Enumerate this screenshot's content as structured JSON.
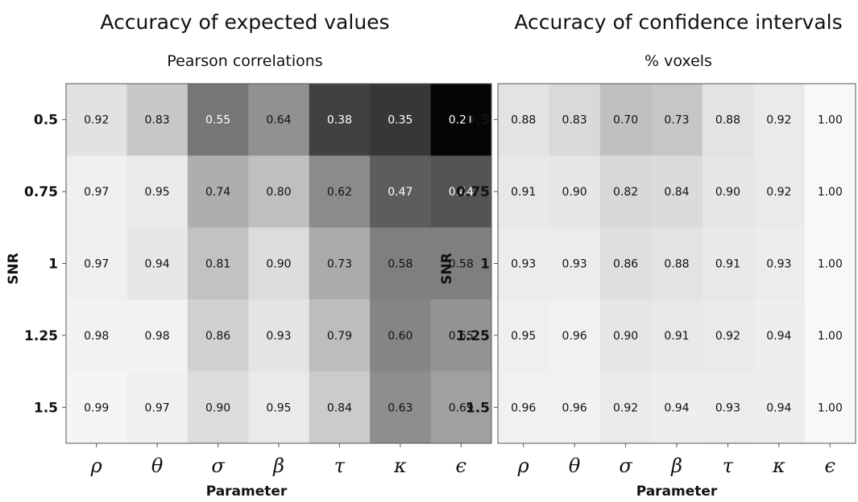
{
  "chart_data": [
    {
      "type": "heatmap",
      "title": "Accuracy of expected values",
      "subtitle": "Pearson correlations",
      "xlabel": "Parameter",
      "ylabel": "SNR",
      "x": [
        "ρ",
        "θ",
        "σ",
        "β",
        "τ",
        "κ",
        "ϵ"
      ],
      "y": [
        "0.5",
        "0.75",
        "1",
        "1.25",
        "1.5"
      ],
      "values": [
        [
          "0.92",
          "0.83",
          "0.55",
          "0.64",
          "0.38",
          "0.35",
          "0.21"
        ],
        [
          "0.97",
          "0.95",
          "0.74",
          "0.80",
          "0.62",
          "0.47",
          "0.44"
        ],
        [
          "0.97",
          "0.94",
          "0.81",
          "0.90",
          "0.73",
          "0.58",
          "0.58"
        ],
        [
          "0.98",
          "0.98",
          "0.86",
          "0.93",
          "0.79",
          "0.60",
          "0.65"
        ],
        [
          "0.99",
          "0.97",
          "0.90",
          "0.95",
          "0.84",
          "0.63",
          "0.69"
        ]
      ],
      "colormap": "grayscale, black = 0.2, white = 1.0",
      "color_range": [
        0.2,
        1.0
      ]
    },
    {
      "type": "heatmap",
      "title": "Accuracy of confidence intervals",
      "subtitle": "% voxels",
      "xlabel": "Parameter",
      "ylabel": "SNR",
      "x": [
        "ρ",
        "θ",
        "σ",
        "β",
        "τ",
        "κ",
        "ϵ"
      ],
      "y": [
        "0.5",
        "0.75",
        "1",
        "1.25",
        "1.5"
      ],
      "values": [
        [
          "0.88",
          "0.83",
          "0.70",
          "0.73",
          "0.88",
          "0.92",
          "1.00"
        ],
        [
          "0.91",
          "0.90",
          "0.82",
          "0.84",
          "0.90",
          "0.92",
          "1.00"
        ],
        [
          "0.93",
          "0.93",
          "0.86",
          "0.88",
          "0.91",
          "0.93",
          "1.00"
        ],
        [
          "0.95",
          "0.96",
          "0.90",
          "0.91",
          "0.92",
          "0.94",
          "1.00"
        ],
        [
          "0.96",
          "0.96",
          "0.92",
          "0.94",
          "0.93",
          "0.94",
          "1.00"
        ]
      ],
      "colormap": "grayscale, light = high",
      "color_range": [
        0.2,
        1.0
      ]
    }
  ]
}
